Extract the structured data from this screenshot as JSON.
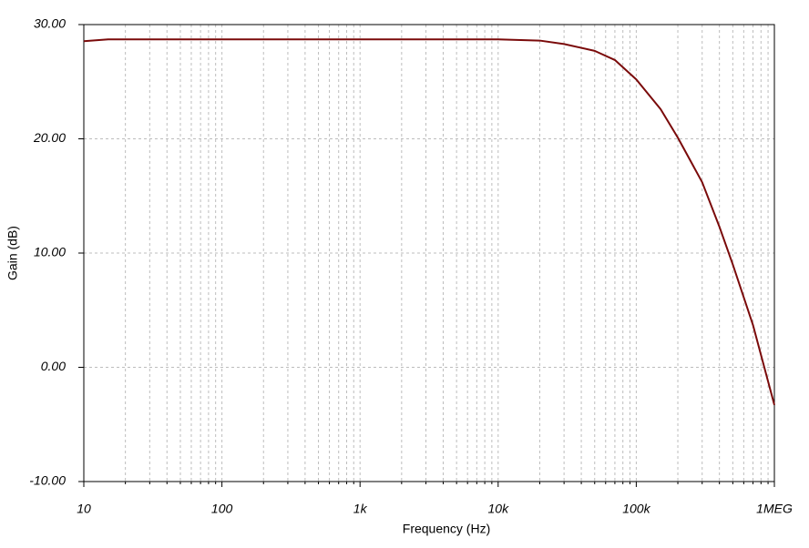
{
  "chart_data": {
    "type": "line",
    "x_label": "Frequency (Hz)",
    "y_label": "Gain (dB)",
    "x": [
      10,
      15,
      100,
      1000,
      10000,
      20000,
      30000,
      50000,
      70000,
      100000,
      150000,
      200000,
      300000,
      400000,
      500000,
      700000,
      1000000
    ],
    "series": [
      {
        "name": "Gain",
        "color": "#7a0a0a",
        "values": [
          28.55,
          28.7,
          28.7,
          28.7,
          28.7,
          28.6,
          28.3,
          27.7,
          26.9,
          25.2,
          22.6,
          20.1,
          16.2,
          12.3,
          9.0,
          3.7,
          -3.3
        ]
      }
    ],
    "xlim": [
      10,
      1000000
    ],
    "x_log": true,
    "xticks": [
      10,
      100,
      {
        "value": 1000,
        "label": "1k"
      },
      {
        "value": 10000,
        "label": "10k"
      },
      {
        "value": 100000,
        "label": "100k"
      },
      {
        "value": 1000000,
        "label": "1MEG"
      }
    ],
    "ylim": [
      -10,
      30
    ],
    "yticks": [
      {
        "value": -10,
        "label": "-10.00"
      },
      {
        "value": 0,
        "label": "0.00"
      },
      {
        "value": 10,
        "label": "10.00"
      },
      {
        "value": 20,
        "label": "20.00"
      },
      {
        "value": 30,
        "label": "30.00"
      }
    ],
    "grid": true
  }
}
